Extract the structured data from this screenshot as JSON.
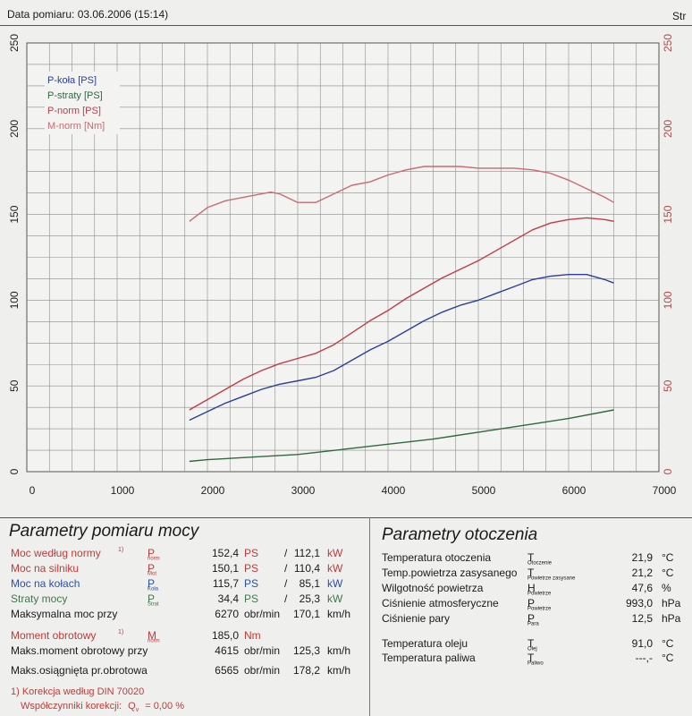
{
  "header": {
    "date": "Data pomiaru: 03.06.2006 (15:14)",
    "page": "Str"
  },
  "colors": {
    "p_kola": "#2a3f9a",
    "p_straty": "#2f6a3c",
    "p_norm": "#c23b45",
    "m_norm": "#cc6a6e",
    "grid": "#8c8c8c"
  },
  "chart_data": {
    "type": "line",
    "x_ticks": [
      "0",
      "1000",
      "2000",
      "3000",
      "4000",
      "5000",
      "6000",
      "7000"
    ],
    "y_ticks_left": [
      "0",
      "50",
      "100",
      "150",
      "200",
      "250"
    ],
    "y_ticks_right": [
      "0",
      "50",
      "100",
      "150",
      "200",
      "250"
    ],
    "xlim": [
      0,
      7000
    ],
    "ylim": [
      0,
      250
    ],
    "grid": true,
    "legend_position": "top-left",
    "series": [
      {
        "name": "P-koła [PS]",
        "color": "#2a3f9a",
        "x": [
          1800,
          2000,
          2200,
          2400,
          2600,
          2800,
          3000,
          3200,
          3400,
          3600,
          3800,
          4000,
          4200,
          4400,
          4600,
          4800,
          5000,
          5200,
          5400,
          5600,
          5800,
          6000,
          6200,
          6400,
          6500
        ],
        "y": [
          30,
          35,
          40,
          44,
          48,
          51,
          53,
          55,
          59,
          65,
          71,
          76,
          82,
          88,
          93,
          97,
          100,
          104,
          108,
          112,
          114,
          115,
          115,
          112,
          110
        ]
      },
      {
        "name": "P-straty [PS]",
        "color": "#2f6a3c",
        "x": [
          1800,
          2000,
          2500,
          3000,
          3500,
          4000,
          4500,
          5000,
          5500,
          6000,
          6500
        ],
        "y": [
          6,
          7,
          8.5,
          10,
          13,
          16,
          19,
          23,
          27,
          31,
          36
        ]
      },
      {
        "name": "P-norm [PS]",
        "color": "#c23b45",
        "x": [
          1800,
          2000,
          2200,
          2400,
          2600,
          2800,
          3000,
          3200,
          3400,
          3600,
          3800,
          4000,
          4200,
          4400,
          4600,
          4800,
          5000,
          5200,
          5400,
          5600,
          5800,
          6000,
          6200,
          6400,
          6500
        ],
        "y": [
          36,
          42,
          48,
          54,
          59,
          63,
          66,
          69,
          74,
          81,
          88,
          94,
          101,
          107,
          113,
          118,
          123,
          129,
          135,
          141,
          145,
          147,
          148,
          147,
          146
        ]
      },
      {
        "name": "M-norm [Nm]",
        "color": "#cc6a6e",
        "x": [
          1800,
          1900,
          2000,
          2200,
          2400,
          2600,
          2700,
          2800,
          3000,
          3200,
          3400,
          3600,
          3800,
          4000,
          4200,
          4400,
          4600,
          4800,
          5000,
          5200,
          5400,
          5600,
          5800,
          6000,
          6200,
          6400,
          6500
        ],
        "y": [
          146,
          150,
          154,
          158,
          160,
          162,
          163,
          162,
          157,
          157,
          162,
          167,
          169,
          173,
          176,
          178,
          178,
          178,
          177,
          177,
          177,
          176,
          174,
          170,
          165,
          160,
          157
        ]
      }
    ]
  },
  "power_section": {
    "title": "Parametry pomiaru mocy",
    "rows": [
      {
        "label": "Moc według normy",
        "mark": "1)",
        "sym": "P",
        "sub": "norm",
        "value": "152,4",
        "unit": "PS",
        "sep": "/",
        "value2": "112,1",
        "unit2": "kW"
      },
      {
        "label": "Moc na silniku",
        "mark": "",
        "sym": "P",
        "sub": "Mot",
        "value": "150,1",
        "unit": "PS",
        "sep": "/",
        "value2": "110,4",
        "unit2": "kW"
      },
      {
        "label": "Moc na kołach",
        "mark": "",
        "sym": "P",
        "sub": "Koła",
        "value": "115,7",
        "unit": "PS",
        "sep": "/",
        "value2": "85,1",
        "unit2": "kW"
      },
      {
        "label": "Straty mocy",
        "mark": "",
        "sym": "P",
        "sub": "Strat",
        "value": "34,4",
        "unit": "PS",
        "sep": "/",
        "value2": "25,3",
        "unit2": "kW"
      },
      {
        "label": "Maksymalna moc przy",
        "mark": "",
        "sym": "",
        "sub": "",
        "value": "6270",
        "unit": "obr/min",
        "sep": "",
        "value2": "170,1",
        "unit2": "km/h"
      },
      {
        "label": "Moment obrotowy",
        "mark": "1)",
        "sym": "M",
        "sub": "norm",
        "value": "185,0",
        "unit": "Nm",
        "sep": "",
        "value2": "",
        "unit2": ""
      },
      {
        "label": "Maks.moment obrotowy przy",
        "mark": "",
        "sym": "",
        "sub": "",
        "value": "4615",
        "unit": "obr/min",
        "sep": "",
        "value2": "125,3",
        "unit2": "km/h"
      },
      {
        "label": "Maks.osiągnięta pr.obrotowa",
        "mark": "",
        "sym": "",
        "sub": "",
        "value": "6565",
        "unit": "obr/min",
        "sep": "",
        "value2": "178,2",
        "unit2": "km/h"
      }
    ],
    "footnote1": "1) Korekcja według DIN 70020",
    "footnote2_label": "Współczynniki korekcji:",
    "footnote2_sym": "Q",
    "footnote2_sub": "v",
    "footnote2_value": "= 0,00 %"
  },
  "ambient_section": {
    "title": "Parametry otoczenia",
    "rows": [
      {
        "label": "Temperatura otoczenia",
        "sym": "T",
        "sub": "Otoczenie",
        "value": "21,9",
        "unit": "°C"
      },
      {
        "label": "Temp.powietrza zasysanego",
        "sym": "T",
        "sub": "Powietrze zasysane",
        "value": "21,2",
        "unit": "°C"
      },
      {
        "label": "Wilgotność powietrza",
        "sym": "H",
        "sub": "Powietrze",
        "value": "47,6",
        "unit": "%"
      },
      {
        "label": "Ciśnienie atmosferyczne",
        "sym": "P",
        "sub": "Powietrze",
        "value": "993,0",
        "unit": "hPa"
      },
      {
        "label": "Ciśnienie pary",
        "sym": "P",
        "sub": "Para",
        "value": "12,5",
        "unit": "hPa"
      },
      {
        "label": "Temperatura oleju",
        "sym": "T",
        "sub": "Olej",
        "value": "91,0",
        "unit": "°C"
      },
      {
        "label": "Temperatura paliwa",
        "sym": "T",
        "sub": "Paliwo",
        "value": "---,-",
        "unit": "°C"
      }
    ]
  }
}
